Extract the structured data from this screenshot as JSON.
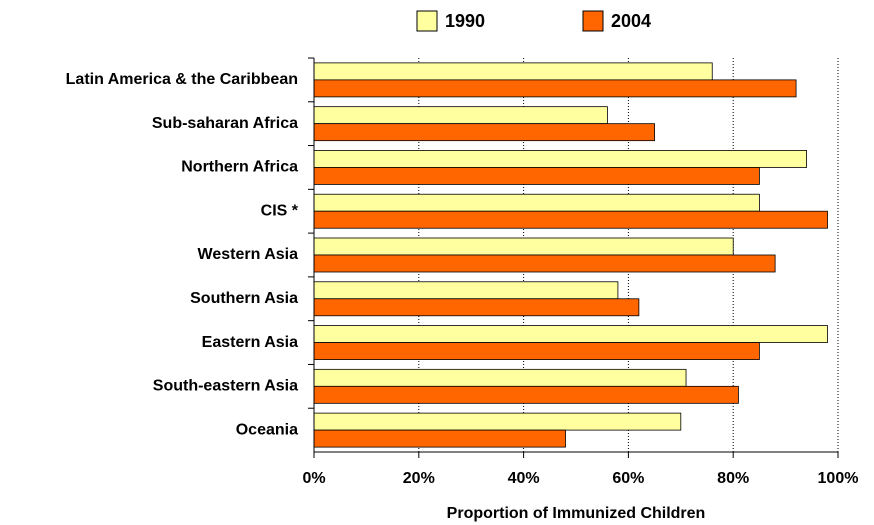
{
  "chart_data": {
    "type": "hbar",
    "x_label": "Proportion of Immunized Children",
    "categories": [
      "Latin America & the Caribbean",
      "Sub-saharan Africa",
      "Northern Africa",
      "CIS *",
      "Western Asia",
      "Southern Asia",
      "Eastern Asia",
      "South-eastern Asia",
      "Oceania"
    ],
    "series": [
      {
        "name": "1990",
        "color": "#ffffa0",
        "values": [
          76,
          56,
          94,
          85,
          80,
          58,
          98,
          71,
          70
        ]
      },
      {
        "name": "2004",
        "color": "#ff6600",
        "values": [
          92,
          65,
          85,
          98,
          88,
          62,
          85,
          81,
          48
        ]
      }
    ],
    "xlim": [
      0,
      100
    ],
    "xticks": [
      {
        "value": 0,
        "label": "0%"
      },
      {
        "value": 20,
        "label": "20%"
      },
      {
        "value": 40,
        "label": "40%"
      },
      {
        "value": 60,
        "label": "60%"
      },
      {
        "value": 80,
        "label": "80%"
      },
      {
        "value": 100,
        "label": "100%"
      }
    ],
    "grid": true,
    "legend": "top"
  }
}
